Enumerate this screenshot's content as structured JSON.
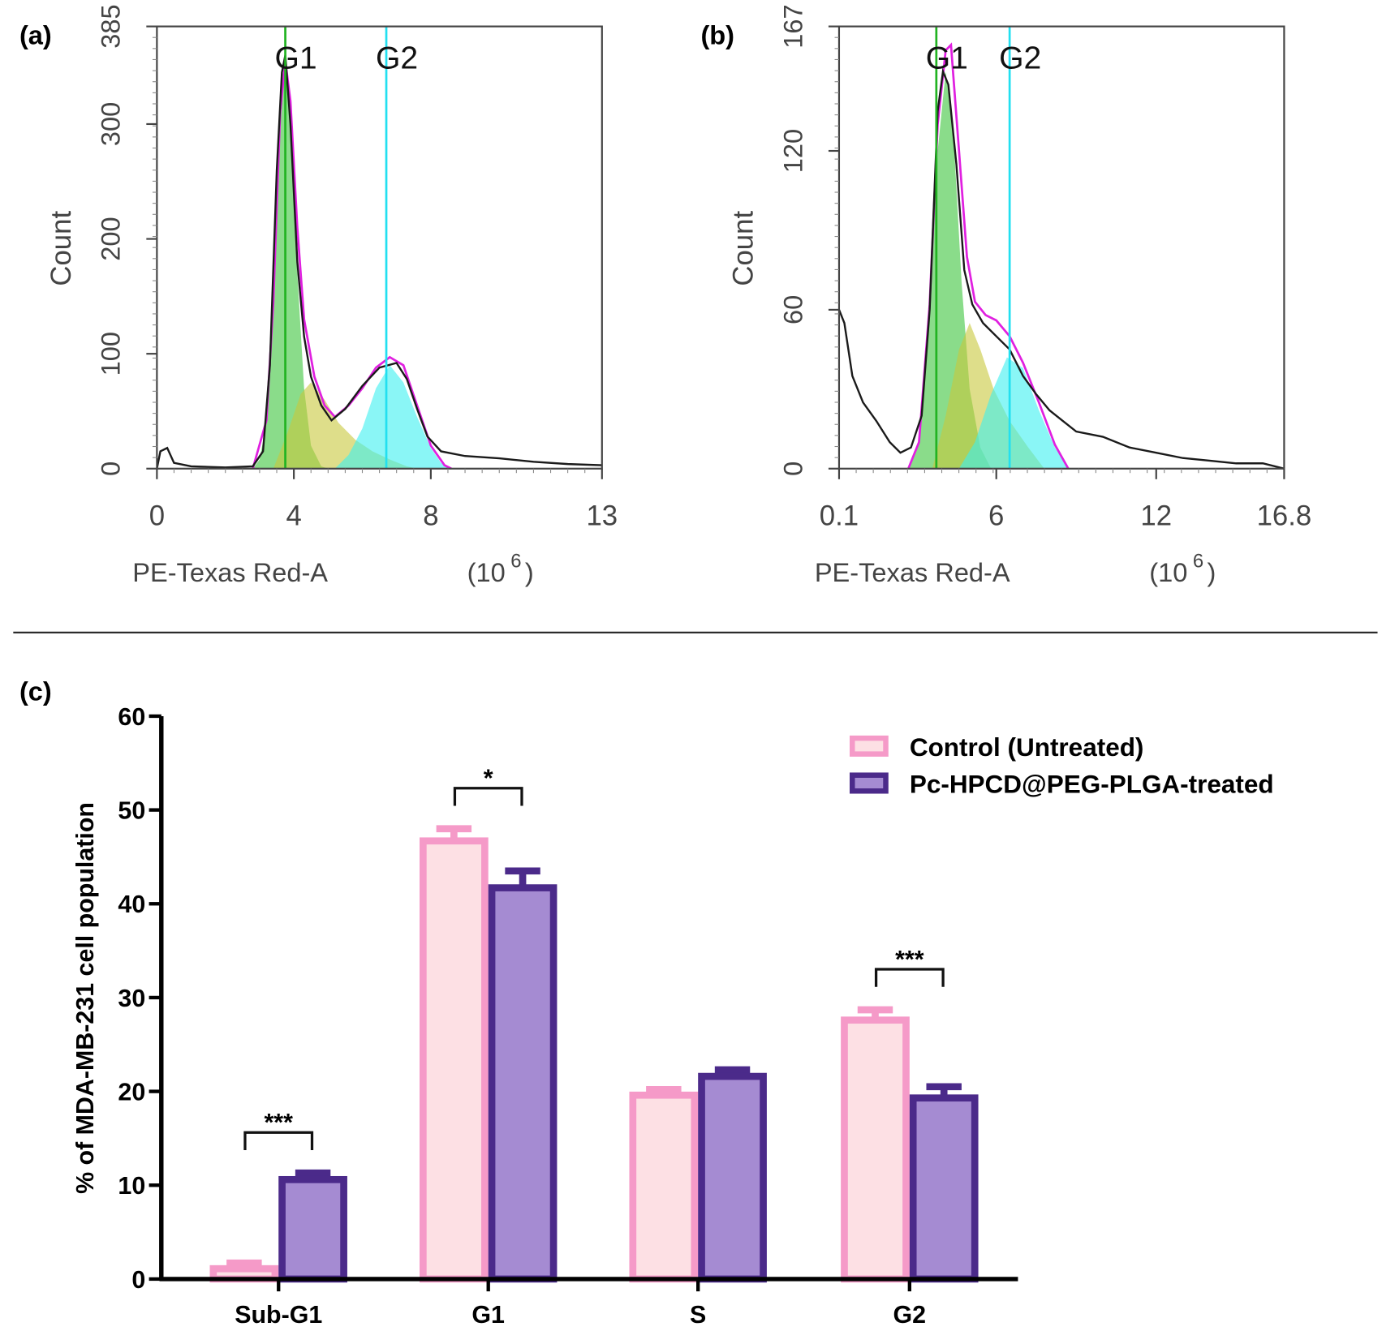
{
  "chart_data": [
    {
      "panel_label": "(a)",
      "type": "area",
      "xlabel": "PE-Texas Red-A",
      "xunit_base": "(10",
      "xunit_exp": "6",
      "xunit_close": ")",
      "ylabel": "Count",
      "xlim": [
        0,
        13
      ],
      "ylim": [
        0,
        385
      ],
      "xticks": [
        "0",
        "4",
        "8",
        "13"
      ],
      "xtick_values": [
        0,
        4,
        8,
        13
      ],
      "yticks": [
        "0",
        "100",
        "200",
        "300",
        "385"
      ],
      "ytick_values": [
        0,
        100,
        200,
        300,
        385
      ],
      "gates": [
        {
          "label": "G1",
          "x": 3.75,
          "color": "#22b322"
        },
        {
          "label": "G2",
          "x": 6.7,
          "color": "#22e0f0"
        }
      ],
      "series": [
        {
          "role": "G1 fit",
          "color": "#3cc43c",
          "points": [
            [
              2.8,
              0
            ],
            [
              3.0,
              8
            ],
            [
              3.2,
              40
            ],
            [
              3.4,
              140
            ],
            [
              3.6,
              300
            ],
            [
              3.75,
              350
            ],
            [
              3.9,
              300
            ],
            [
              4.1,
              170
            ],
            [
              4.3,
              70
            ],
            [
              4.5,
              20
            ],
            [
              4.8,
              2
            ],
            [
              5.0,
              0
            ]
          ]
        },
        {
          "role": "S fit",
          "color": "#c8c83c",
          "points": [
            [
              3.4,
              0
            ],
            [
              3.8,
              30
            ],
            [
              4.2,
              65
            ],
            [
              4.5,
              75
            ],
            [
              4.9,
              60
            ],
            [
              5.3,
              40
            ],
            [
              5.8,
              25
            ],
            [
              6.3,
              15
            ],
            [
              6.8,
              8
            ],
            [
              7.3,
              2
            ],
            [
              7.6,
              0
            ]
          ]
        },
        {
          "role": "G2 fit",
          "color": "#3cf0f0",
          "points": [
            [
              5.2,
              0
            ],
            [
              5.6,
              12
            ],
            [
              6.0,
              35
            ],
            [
              6.4,
              70
            ],
            [
              6.8,
              90
            ],
            [
              7.2,
              75
            ],
            [
              7.6,
              45
            ],
            [
              8.0,
              18
            ],
            [
              8.3,
              5
            ],
            [
              8.6,
              0
            ]
          ]
        },
        {
          "role": "model sum",
          "color": "#e020e0",
          "points": [
            [
              2.8,
              0
            ],
            [
              3.2,
              42
            ],
            [
              3.4,
              145
            ],
            [
              3.6,
              310
            ],
            [
              3.75,
              355
            ],
            [
              3.9,
              320
            ],
            [
              4.1,
              210
            ],
            [
              4.3,
              130
            ],
            [
              4.6,
              80
            ],
            [
              4.9,
              55
            ],
            [
              5.2,
              45
            ],
            [
              5.6,
              55
            ],
            [
              6.0,
              70
            ],
            [
              6.4,
              88
            ],
            [
              6.8,
              97
            ],
            [
              7.2,
              90
            ],
            [
              7.6,
              55
            ],
            [
              8.0,
              20
            ],
            [
              8.4,
              3
            ],
            [
              8.6,
              0
            ]
          ]
        },
        {
          "role": "measured histogram",
          "color": "#1a1a1a",
          "points": [
            [
              0,
              0
            ],
            [
              0.1,
              15
            ],
            [
              0.3,
              18
            ],
            [
              0.5,
              5
            ],
            [
              1,
              2
            ],
            [
              2,
              1
            ],
            [
              2.8,
              2
            ],
            [
              3.1,
              15
            ],
            [
              3.3,
              90
            ],
            [
              3.5,
              260
            ],
            [
              3.65,
              345
            ],
            [
              3.75,
              360
            ],
            [
              3.9,
              300
            ],
            [
              4.1,
              180
            ],
            [
              4.3,
              115
            ],
            [
              4.5,
              80
            ],
            [
              4.8,
              55
            ],
            [
              5.1,
              42
            ],
            [
              5.5,
              52
            ],
            [
              6.0,
              72
            ],
            [
              6.5,
              88
            ],
            [
              7.0,
              92
            ],
            [
              7.3,
              78
            ],
            [
              7.6,
              52
            ],
            [
              7.9,
              28
            ],
            [
              8.3,
              15
            ],
            [
              9,
              11
            ],
            [
              10,
              9
            ],
            [
              11,
              6
            ],
            [
              12,
              4
            ],
            [
              13,
              3
            ]
          ]
        }
      ]
    },
    {
      "panel_label": "(b)",
      "type": "area",
      "xlabel": "PE-Texas Red-A",
      "xunit_base": "(10",
      "xunit_exp": "6",
      "xunit_close": ")",
      "ylabel": "Count",
      "xlim": [
        0.1,
        16.8
      ],
      "ylim": [
        0,
        167
      ],
      "xticks": [
        "0.1",
        "6",
        "12",
        "16.8"
      ],
      "xtick_values": [
        0.1,
        6,
        12,
        16.8
      ],
      "yticks": [
        "0",
        "60",
        "120",
        "167"
      ],
      "ytick_values": [
        0,
        60,
        120,
        167
      ],
      "gates": [
        {
          "label": "G1",
          "x": 3.75,
          "color": "#22b322"
        },
        {
          "label": "G2",
          "x": 6.5,
          "color": "#22e0f0"
        }
      ],
      "series": [
        {
          "role": "G1 fit",
          "color": "#3cc43c",
          "points": [
            [
              2.7,
              0
            ],
            [
              3.1,
              10
            ],
            [
              3.5,
              60
            ],
            [
              3.8,
              120
            ],
            [
              4.1,
              150
            ],
            [
              4.4,
              125
            ],
            [
              4.7,
              70
            ],
            [
              5.0,
              30
            ],
            [
              5.4,
              8
            ],
            [
              5.8,
              0
            ]
          ]
        },
        {
          "role": "S fit",
          "color": "#c8c83c",
          "points": [
            [
              3.6,
              0
            ],
            [
              4.1,
              20
            ],
            [
              4.6,
              45
            ],
            [
              5.0,
              55
            ],
            [
              5.4,
              45
            ],
            [
              5.9,
              30
            ],
            [
              6.5,
              18
            ],
            [
              7.2,
              8
            ],
            [
              7.8,
              0
            ]
          ]
        },
        {
          "role": "G2 fit",
          "color": "#3cf0f0",
          "points": [
            [
              4.6,
              0
            ],
            [
              5.2,
              10
            ],
            [
              5.8,
              28
            ],
            [
              6.4,
              42
            ],
            [
              7.0,
              38
            ],
            [
              7.6,
              22
            ],
            [
              8.2,
              8
            ],
            [
              8.7,
              0
            ]
          ]
        },
        {
          "role": "model sum",
          "color": "#e020e0",
          "points": [
            [
              2.7,
              0
            ],
            [
              3.1,
              10
            ],
            [
              3.5,
              62
            ],
            [
              3.8,
              130
            ],
            [
              4.1,
              158
            ],
            [
              4.3,
              160
            ],
            [
              4.6,
              120
            ],
            [
              4.9,
              80
            ],
            [
              5.2,
              63
            ],
            [
              5.6,
              58
            ],
            [
              6.0,
              56
            ],
            [
              6.5,
              50
            ],
            [
              7.0,
              40
            ],
            [
              7.6,
              25
            ],
            [
              8.2,
              9
            ],
            [
              8.7,
              0
            ]
          ]
        },
        {
          "role": "measured histogram",
          "color": "#1a1a1a",
          "points": [
            [
              0.1,
              60
            ],
            [
              0.3,
              55
            ],
            [
              0.6,
              35
            ],
            [
              1,
              25
            ],
            [
              1.5,
              18
            ],
            [
              2,
              10
            ],
            [
              2.4,
              6
            ],
            [
              2.8,
              8
            ],
            [
              3.2,
              20
            ],
            [
              3.5,
              60
            ],
            [
              3.8,
              135
            ],
            [
              4.0,
              150
            ],
            [
              4.2,
              145
            ],
            [
              4.5,
              115
            ],
            [
              4.8,
              75
            ],
            [
              5.1,
              62
            ],
            [
              5.5,
              55
            ],
            [
              6.0,
              50
            ],
            [
              6.5,
              45
            ],
            [
              7.0,
              35
            ],
            [
              7.5,
              28
            ],
            [
              8.0,
              22
            ],
            [
              8.5,
              18
            ],
            [
              9.0,
              14
            ],
            [
              10,
              12
            ],
            [
              11,
              8
            ],
            [
              12,
              6
            ],
            [
              13,
              4
            ],
            [
              14,
              3
            ],
            [
              15,
              2
            ],
            [
              16,
              2
            ],
            [
              16.8,
              0
            ]
          ]
        }
      ]
    },
    {
      "panel_label": "(c)",
      "type": "bar",
      "ylabel": "% of MDA-MB-231 cell population",
      "categories": [
        "Sub-G1",
        "G1",
        "S",
        "G2"
      ],
      "ylim": [
        0,
        60
      ],
      "yticks": [
        "0",
        "10",
        "20",
        "30",
        "40",
        "50",
        "60"
      ],
      "ytick_values": [
        0,
        10,
        20,
        30,
        40,
        50,
        60
      ],
      "legend_position": "top-right",
      "series": [
        {
          "name": "Control (Untreated)",
          "stroke": "#f59ac8",
          "fill": "#fde0e4",
          "values": [
            1.1,
            46.7,
            19.6,
            27.6
          ],
          "errors": [
            0.6,
            1.3,
            0.6,
            1.1
          ]
        },
        {
          "name": "Pc-HPCD@PEG-PLGA-treated",
          "stroke": "#4b2a8a",
          "fill": "#a58bd2",
          "values": [
            10.6,
            41.7,
            21.6,
            19.3
          ],
          "errors": [
            0.7,
            1.8,
            0.7,
            1.2
          ]
        }
      ],
      "significance": [
        {
          "category": "Sub-G1",
          "label": "***"
        },
        {
          "category": "G1",
          "label": "*"
        },
        {
          "category": "G2",
          "label": "***"
        }
      ]
    }
  ]
}
